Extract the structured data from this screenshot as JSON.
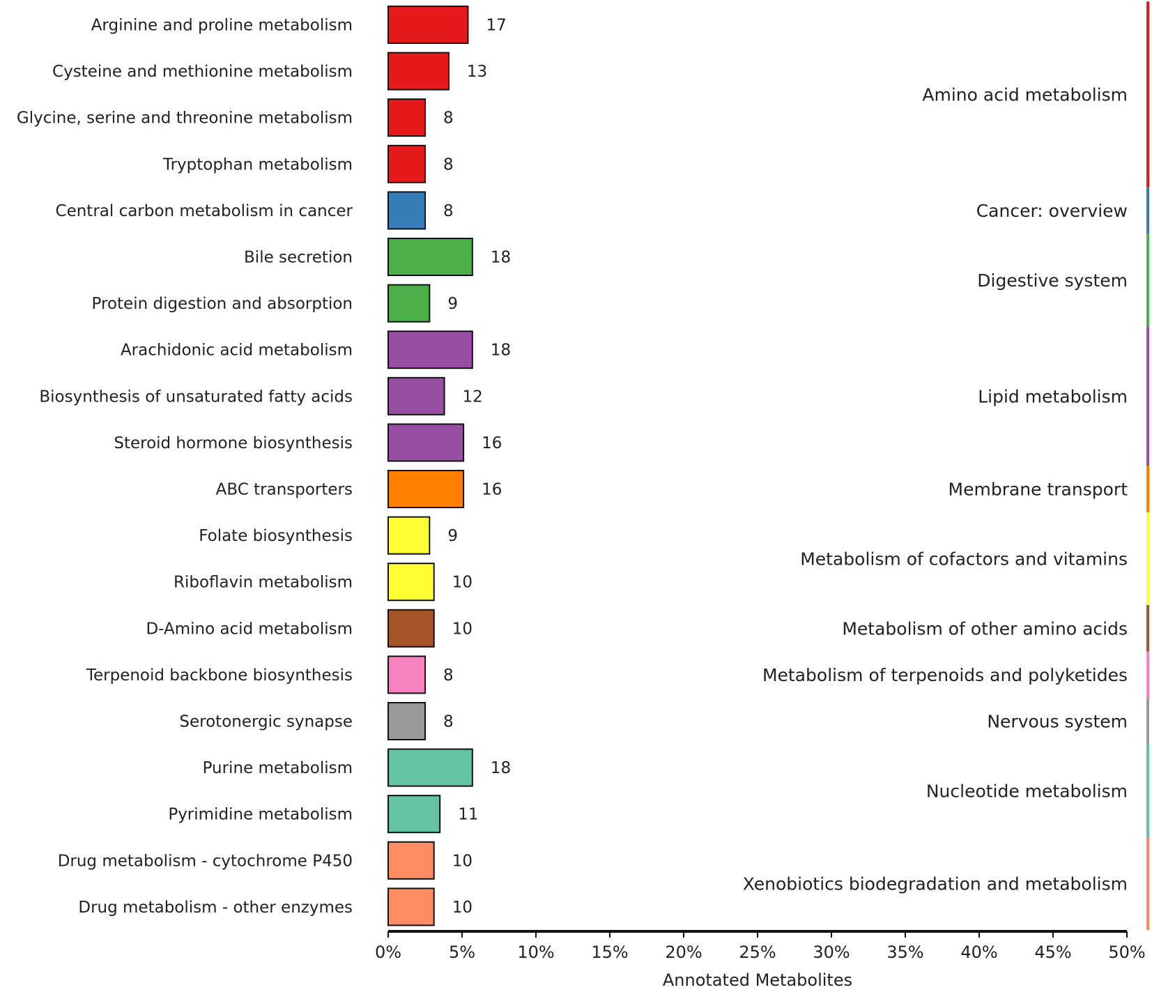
{
  "chart_data": {
    "type": "bar",
    "orientation": "horizontal",
    "title": "",
    "xlabel": "Annotated Metabolites",
    "ylabel": "",
    "xlim": [
      0,
      50
    ],
    "xticks": [
      "0%",
      "5%",
      "10%",
      "15%",
      "20%",
      "25%",
      "30%",
      "35%",
      "40%",
      "45%",
      "50%"
    ],
    "grid": false,
    "bars": [
      {
        "label": "Arginine and proline metabolism",
        "count": 17,
        "percent": 5.4,
        "group": "Amino acid metabolism"
      },
      {
        "label": "Cysteine and methionine metabolism",
        "count": 13,
        "percent": 4.1,
        "group": "Amino acid metabolism"
      },
      {
        "label": "Glycine, serine and threonine metabolism",
        "count": 8,
        "percent": 2.5,
        "group": "Amino acid metabolism"
      },
      {
        "label": "Tryptophan metabolism",
        "count": 8,
        "percent": 2.5,
        "group": "Amino acid metabolism"
      },
      {
        "label": "Central carbon metabolism in cancer",
        "count": 8,
        "percent": 2.5,
        "group": "Cancer: overview"
      },
      {
        "label": "Bile secretion",
        "count": 18,
        "percent": 5.7,
        "group": "Digestive system"
      },
      {
        "label": "Protein digestion and absorption",
        "count": 9,
        "percent": 2.8,
        "group": "Digestive system"
      },
      {
        "label": "Arachidonic acid metabolism",
        "count": 18,
        "percent": 5.7,
        "group": "Lipid metabolism"
      },
      {
        "label": "Biosynthesis of unsaturated fatty acids",
        "count": 12,
        "percent": 3.8,
        "group": "Lipid metabolism"
      },
      {
        "label": "Steroid hormone biosynthesis",
        "count": 16,
        "percent": 5.1,
        "group": "Lipid metabolism"
      },
      {
        "label": "ABC transporters",
        "count": 16,
        "percent": 5.1,
        "group": "Membrane transport"
      },
      {
        "label": "Folate biosynthesis",
        "count": 9,
        "percent": 2.8,
        "group": "Metabolism of cofactors and vitamins"
      },
      {
        "label": "Riboflavin metabolism",
        "count": 10,
        "percent": 3.1,
        "group": "Metabolism of cofactors and vitamins"
      },
      {
        "label": "D-Amino acid metabolism",
        "count": 10,
        "percent": 3.1,
        "group": "Metabolism of other amino acids"
      },
      {
        "label": "Terpenoid backbone biosynthesis",
        "count": 8,
        "percent": 2.5,
        "group": "Metabolism of terpenoids and polyketides"
      },
      {
        "label": "Serotonergic synapse",
        "count": 8,
        "percent": 2.5,
        "group": "Nervous system"
      },
      {
        "label": "Purine metabolism",
        "count": 18,
        "percent": 5.7,
        "group": "Nucleotide metabolism"
      },
      {
        "label": "Pyrimidine metabolism",
        "count": 11,
        "percent": 3.5,
        "group": "Nucleotide metabolism"
      },
      {
        "label": "Drug metabolism - cytochrome P450",
        "count": 10,
        "percent": 3.1,
        "group": "Xenobiotics biodegradation and metabolism"
      },
      {
        "label": "Drug metabolism - other enzymes",
        "count": 10,
        "percent": 3.1,
        "group": "Xenobiotics biodegradation and metabolism"
      }
    ],
    "groups": [
      {
        "name": "Amino acid metabolism",
        "color": "#e41a1c",
        "count": 4
      },
      {
        "name": "Cancer: overview",
        "color": "#377eb8",
        "count": 1
      },
      {
        "name": "Digestive system",
        "color": "#4daf4a",
        "count": 2
      },
      {
        "name": "Lipid metabolism",
        "color": "#984ea3",
        "count": 3
      },
      {
        "name": "Membrane transport",
        "color": "#ff7f00",
        "count": 1
      },
      {
        "name": "Metabolism of cofactors and vitamins",
        "color": "#ffff33",
        "count": 2
      },
      {
        "name": "Metabolism of other amino acids",
        "color": "#a65628",
        "count": 1
      },
      {
        "name": "Metabolism of terpenoids and polyketides",
        "color": "#f781bf",
        "count": 1
      },
      {
        "name": "Nervous system",
        "color": "#999999",
        "count": 1
      },
      {
        "name": "Nucleotide metabolism",
        "color": "#66c2a5",
        "count": 2
      },
      {
        "name": "Xenobiotics biodegradation and metabolism",
        "color": "#fc8d62",
        "count": 2
      }
    ]
  }
}
